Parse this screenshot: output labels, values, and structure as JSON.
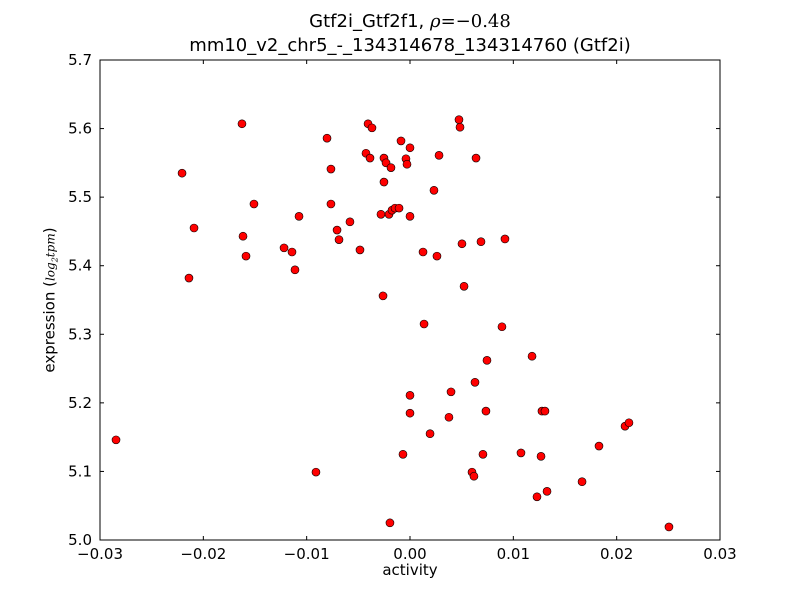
{
  "chart_data": {
    "type": "scatter",
    "title_line1_prefix": "Gtf2i_Gtf2f1, ",
    "title_rho_symbol": "ρ",
    "title_rho_value": "=−0.48",
    "title_line2": "mm10_v2_chr5_-_134314678_134314760 (Gtf2i)",
    "xlabel": "activity",
    "ylabel_prefix": "expression (",
    "ylabel_unit": "log",
    "ylabel_sub": "2",
    "ylabel_unit2": "tpm",
    "ylabel_suffix": ")",
    "xlim": [
      -0.03,
      0.03
    ],
    "ylim": [
      5.0,
      5.7
    ],
    "xticks": [
      "−0.03",
      "−0.02",
      "−0.01",
      "0.00",
      "0.01",
      "0.02",
      "0.03"
    ],
    "xtick_values": [
      -0.03,
      -0.02,
      -0.01,
      0,
      0.01,
      0.02,
      0.03
    ],
    "yticks": [
      "5.0",
      "5.1",
      "5.2",
      "5.3",
      "5.4",
      "5.5",
      "5.6",
      "5.7"
    ],
    "ytick_values": [
      5.0,
      5.1,
      5.2,
      5.3,
      5.4,
      5.5,
      5.6,
      5.7
    ],
    "grid": false,
    "marker_color": "#ff0000",
    "points": [
      [
        -0.02845,
        5.146
      ],
      [
        -0.02206,
        5.535
      ],
      [
        -0.02139,
        5.382
      ],
      [
        -0.0209,
        5.455
      ],
      [
        -0.01626,
        5.607
      ],
      [
        -0.01616,
        5.443
      ],
      [
        -0.01587,
        5.414
      ],
      [
        -0.0151,
        5.49
      ],
      [
        -0.01219,
        5.426
      ],
      [
        -0.01142,
        5.42
      ],
      [
        -0.01113,
        5.394
      ],
      [
        -0.01074,
        5.472
      ],
      [
        -0.0091,
        5.099
      ],
      [
        -0.00803,
        5.586
      ],
      [
        -0.00765,
        5.541
      ],
      [
        -0.00765,
        5.49
      ],
      [
        -0.00706,
        5.452
      ],
      [
        -0.00687,
        5.438
      ],
      [
        -0.00581,
        5.464
      ],
      [
        -0.00484,
        5.423
      ],
      [
        -0.00426,
        5.564
      ],
      [
        -0.00406,
        5.607
      ],
      [
        -0.00368,
        5.601
      ],
      [
        -0.00387,
        5.557
      ],
      [
        -0.00261,
        5.356
      ],
      [
        -0.00281,
        5.475
      ],
      [
        -0.00252,
        5.557
      ],
      [
        -0.00252,
        5.522
      ],
      [
        -0.00232,
        5.55
      ],
      [
        -0.00203,
        5.475
      ],
      [
        -0.00184,
        5.543
      ],
      [
        -0.00174,
        5.481
      ],
      [
        -0.00145,
        5.484
      ],
      [
        -0.00106,
        5.484
      ],
      [
        -0.00087,
        5.582
      ],
      [
        -0.00039,
        5.556
      ],
      [
        -0.00029,
        5.548
      ],
      [
        0.0,
        5.572
      ],
      [
        0.0,
        5.472
      ],
      [
        -0.00194,
        5.025
      ],
      [
        -0.00068,
        5.125
      ],
      [
        0.0,
        5.211
      ],
      [
        0.0,
        5.185
      ],
      [
        0.00126,
        5.42
      ],
      [
        0.00136,
        5.315
      ],
      [
        0.00194,
        5.155
      ],
      [
        0.00232,
        5.51
      ],
      [
        0.00261,
        5.414
      ],
      [
        0.00281,
        5.561
      ],
      [
        0.00377,
        5.179
      ],
      [
        0.00397,
        5.216
      ],
      [
        0.00474,
        5.613
      ],
      [
        0.00484,
        5.602
      ],
      [
        0.00503,
        5.432
      ],
      [
        0.00523,
        5.37
      ],
      [
        0.00639,
        5.557
      ],
      [
        0.00629,
        5.23
      ],
      [
        0.00687,
        5.435
      ],
      [
        0.00706,
        5.125
      ],
      [
        0.00735,
        5.188
      ],
      [
        0.00745,
        5.262
      ],
      [
        0.006,
        5.099
      ],
      [
        0.00619,
        5.093
      ],
      [
        0.0089,
        5.311
      ],
      [
        0.00919,
        5.439
      ],
      [
        0.01074,
        5.127
      ],
      [
        0.01181,
        5.268
      ],
      [
        0.01229,
        5.063
      ],
      [
        0.01268,
        5.122
      ],
      [
        0.01277,
        5.188
      ],
      [
        0.01306,
        5.188
      ],
      [
        0.01326,
        5.071
      ],
      [
        0.01665,
        5.085
      ],
      [
        0.01829,
        5.137
      ],
      [
        0.02081,
        5.166
      ],
      [
        0.02119,
        5.171
      ],
      [
        0.02506,
        5.019
      ]
    ]
  }
}
